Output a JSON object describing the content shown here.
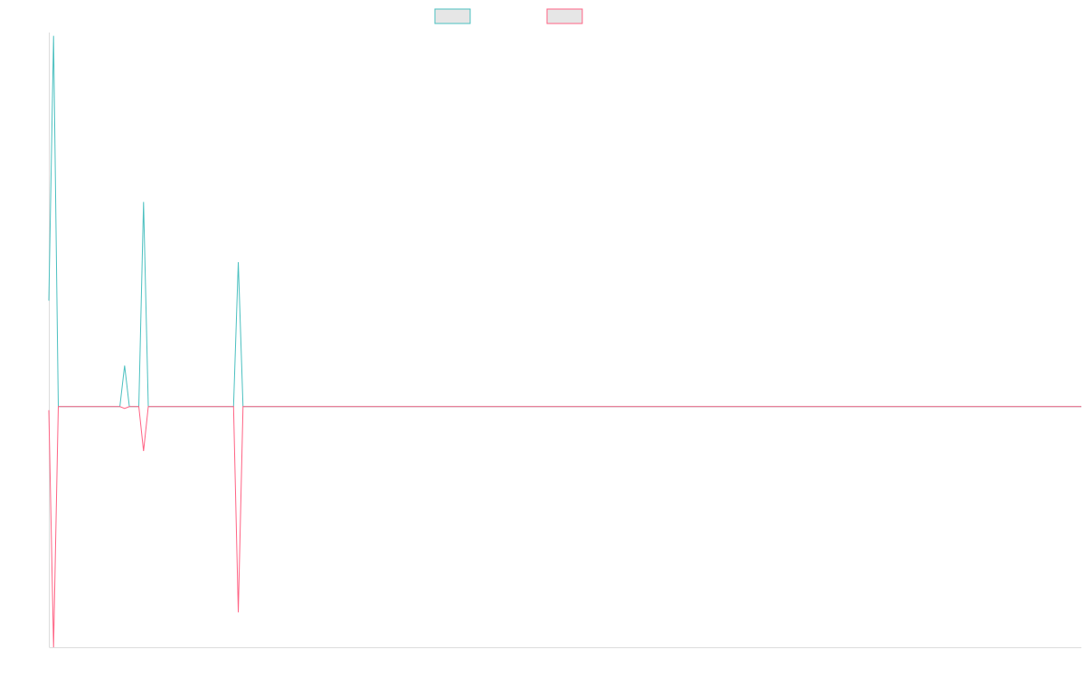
{
  "chart_data": {
    "type": "line",
    "legend_placement": "top-center",
    "grid": false,
    "ylim": [
      -1000,
      1550
    ],
    "x": [
      0,
      1,
      2,
      3,
      4,
      5,
      6,
      7,
      8,
      9,
      10,
      11,
      12,
      13,
      14,
      15,
      16,
      17,
      18,
      19,
      20,
      21,
      22,
      23,
      24,
      25,
      26,
      27,
      28,
      29,
      30,
      31,
      32,
      33,
      34,
      35,
      36,
      37,
      38,
      39,
      40,
      41,
      42,
      43,
      44,
      45,
      46,
      47,
      48,
      49,
      50,
      51,
      52,
      53,
      54,
      55,
      56,
      57,
      58,
      59,
      60,
      61,
      62,
      63,
      64,
      65,
      66,
      67,
      68,
      69,
      70,
      71,
      72,
      73,
      74,
      75,
      76,
      77,
      78,
      79,
      80,
      81,
      82,
      83,
      84,
      85,
      86,
      87,
      88,
      89,
      90,
      91,
      92,
      93,
      94,
      95,
      96,
      97,
      98,
      99,
      100,
      101,
      102,
      103,
      104,
      105,
      106,
      107,
      108,
      109,
      110,
      111,
      112,
      113,
      114,
      115,
      116,
      117,
      118,
      119,
      120,
      121,
      122,
      123,
      124,
      125,
      126,
      127,
      128,
      129,
      130,
      131,
      132,
      133,
      134,
      135,
      136,
      137,
      138,
      139,
      140,
      141,
      142,
      143,
      144,
      145,
      146,
      147,
      148,
      149,
      150,
      151,
      152,
      153,
      154,
      155,
      156,
      157,
      158,
      159,
      160,
      161,
      162,
      163,
      164,
      165,
      166,
      167,
      168,
      169,
      170,
      171,
      172,
      173,
      174,
      175,
      176,
      177,
      178,
      179,
      180,
      181,
      182,
      183,
      184,
      185,
      186,
      187,
      188,
      189,
      190,
      191,
      192,
      193,
      194,
      195,
      196,
      197,
      198,
      199,
      200,
      201,
      202,
      203,
      204,
      205,
      206,
      207,
      208,
      209,
      210,
      211,
      212,
      213,
      214,
      215,
      216,
      217,
      218
    ],
    "series": [
      {
        "color": "#4bc0c0",
        "values": [
          440,
          1540,
          0,
          0,
          0,
          0,
          0,
          0,
          0,
          0,
          0,
          0,
          0,
          0,
          0,
          0,
          170,
          0,
          0,
          0,
          850,
          0,
          0,
          0,
          0,
          0,
          0,
          0,
          0,
          0,
          0,
          0,
          0,
          0,
          0,
          0,
          0,
          0,
          0,
          0,
          600,
          0,
          0,
          0,
          0,
          0,
          0,
          0,
          0,
          0,
          0,
          0,
          0,
          0,
          0,
          0,
          0,
          0,
          0,
          0,
          0,
          0,
          0,
          0,
          0,
          0,
          0,
          0,
          0,
          0,
          0,
          0,
          0,
          0,
          0,
          0,
          0,
          0,
          0,
          0,
          0,
          0,
          0,
          0,
          0,
          0,
          0,
          0,
          0,
          0,
          0,
          0,
          0,
          0,
          0,
          0,
          0,
          0,
          0,
          0,
          0,
          0,
          0,
          0,
          0,
          0,
          0,
          0,
          0,
          0,
          0,
          0,
          0,
          0,
          0,
          0,
          0,
          0,
          0,
          0,
          0,
          0,
          0,
          0,
          0,
          0,
          0,
          0,
          0,
          0,
          0,
          0,
          0,
          0,
          0,
          0,
          0,
          0,
          0,
          0,
          0,
          0,
          0,
          0,
          0,
          0,
          0,
          0,
          0,
          0,
          0,
          0,
          0,
          0,
          0,
          0,
          0,
          0,
          0,
          0,
          0,
          0,
          0,
          0,
          0,
          0,
          0,
          0,
          0,
          0,
          0,
          0,
          0,
          0,
          0,
          0,
          0,
          0,
          0,
          0,
          0,
          0,
          0,
          0,
          0,
          0,
          0,
          0,
          0,
          0,
          0,
          0,
          0,
          0,
          0,
          0,
          0,
          0,
          0,
          0,
          0,
          0,
          0,
          0,
          0,
          0,
          0,
          0,
          0,
          0,
          0,
          0,
          0,
          0,
          0,
          0,
          0,
          0,
          0
        ]
      },
      {
        "color": "#ff6384",
        "values": [
          -15,
          -1000,
          0,
          0,
          0,
          0,
          0,
          0,
          0,
          0,
          0,
          0,
          0,
          0,
          0,
          0,
          -8,
          0,
          0,
          0,
          -185,
          0,
          0,
          0,
          0,
          0,
          0,
          0,
          0,
          0,
          0,
          0,
          0,
          0,
          0,
          0,
          0,
          0,
          0,
          0,
          -855,
          0,
          0,
          0,
          0,
          0,
          0,
          0,
          0,
          0,
          0,
          0,
          0,
          0,
          0,
          0,
          0,
          0,
          0,
          0,
          0,
          0,
          0,
          0,
          0,
          0,
          0,
          0,
          0,
          0,
          0,
          0,
          0,
          0,
          0,
          0,
          0,
          0,
          0,
          0,
          0,
          0,
          0,
          0,
          0,
          0,
          0,
          0,
          0,
          0,
          0,
          0,
          0,
          0,
          0,
          0,
          0,
          0,
          0,
          0,
          0,
          0,
          0,
          0,
          0,
          0,
          0,
          0,
          0,
          0,
          0,
          0,
          0,
          0,
          0,
          0,
          0,
          0,
          0,
          0,
          0,
          0,
          0,
          0,
          0,
          0,
          0,
          0,
          0,
          0,
          0,
          0,
          0,
          0,
          0,
          0,
          0,
          0,
          0,
          0,
          0,
          0,
          0,
          0,
          0,
          0,
          0,
          0,
          0,
          0,
          0,
          0,
          0,
          0,
          0,
          0,
          0,
          0,
          0,
          0,
          0,
          0,
          0,
          0,
          0,
          0,
          0,
          0,
          0,
          0,
          0,
          0,
          0,
          0,
          0,
          0,
          0,
          0,
          0,
          0,
          0,
          0,
          0,
          0,
          0,
          0,
          0,
          0,
          0,
          0,
          0,
          0,
          0,
          0,
          0,
          0,
          0,
          0,
          0,
          0,
          0,
          0,
          0,
          0,
          0,
          0,
          0,
          0,
          0,
          0,
          0,
          0,
          0,
          0,
          0,
          0,
          0,
          0,
          0
        ]
      }
    ],
    "legend_swatch_fill": "#e6e6e6",
    "axis_color": "#dcdcdc"
  }
}
